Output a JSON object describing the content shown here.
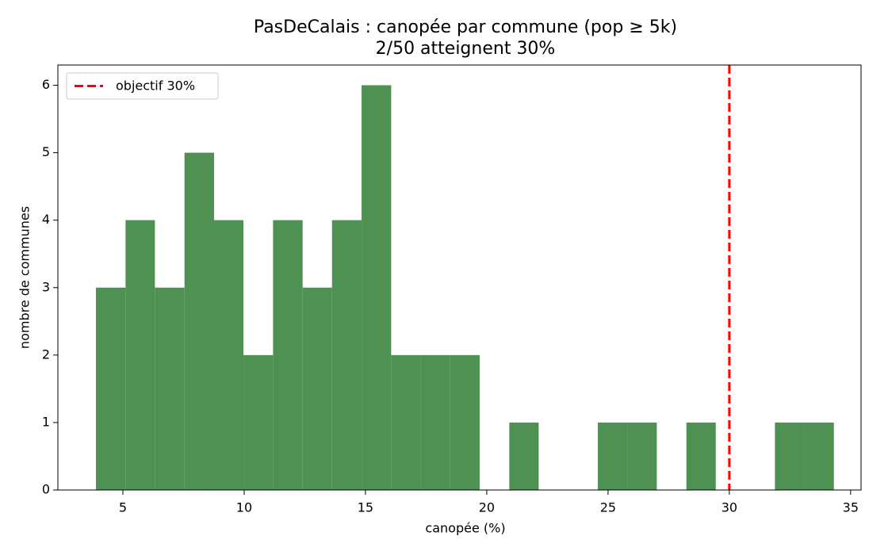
{
  "chart_data": {
    "type": "histogram",
    "title": "PasDeCalais : canopée par commune (pop ≥ 5k)",
    "subtitle": "2/50 atteignent 30%",
    "x_label": "canopée (%)",
    "y_label": "nombre de communes",
    "bins": [
      3.89,
      5.11,
      6.32,
      7.54,
      8.76,
      9.97,
      11.19,
      12.41,
      13.62,
      14.84,
      16.06,
      17.27,
      18.49,
      19.71,
      20.93,
      22.14,
      23.36,
      24.58,
      25.79,
      27.01,
      28.23,
      29.44,
      30.66,
      31.88,
      33.09,
      34.31
    ],
    "counts": [
      3,
      4,
      3,
      5,
      4,
      2,
      4,
      3,
      4,
      6,
      2,
      2,
      2,
      0,
      1,
      0,
      0,
      1,
      1,
      0,
      1,
      0,
      0,
      1,
      1
    ],
    "color": "#4f9153",
    "xlim": [
      2.32,
      35.43
    ],
    "ylim": [
      0,
      6.3
    ],
    "xticks": [
      5,
      10,
      15,
      20,
      25,
      30,
      35
    ],
    "yticks": [
      0,
      1,
      2,
      3,
      4,
      5,
      6
    ],
    "vline": {
      "x": 30,
      "name": "objectif 30%",
      "color": "#ff0000",
      "style": "dashed"
    },
    "legend": "upper left"
  }
}
